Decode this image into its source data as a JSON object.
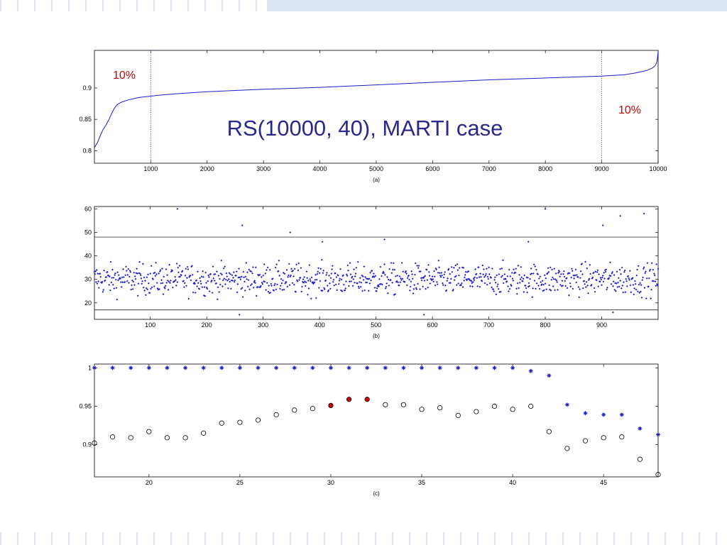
{
  "slide": {
    "title": "RS(10000, 40), MARTI case"
  },
  "colors": {
    "blue": "#1c1ccb",
    "red": "#cc0000",
    "axis": "#000000",
    "title": "#28288e",
    "band": "#dde4f4"
  },
  "chart_data": [
    {
      "type": "line",
      "caption": "(a)",
      "x_range": [
        1,
        10000
      ],
      "ylim": [
        0.78,
        0.96
      ],
      "xticks": [
        1000,
        2000,
        3000,
        4000,
        5000,
        6000,
        7000,
        8000,
        9000,
        10000
      ],
      "yticks": [
        0.8,
        0.85,
        0.9
      ],
      "yticklabels": [
        "0.8",
        "0.85",
        "0.9"
      ],
      "vlines": [
        1000,
        9000
      ],
      "annotations": [
        "10%",
        "10%"
      ],
      "series": [
        {
          "x": [
            1,
            50,
            100,
            150,
            200,
            250,
            300,
            350,
            400,
            450,
            500,
            600,
            700,
            800,
            900,
            1000,
            1200,
            1500,
            2000,
            2500,
            3000,
            4000,
            5000,
            6000,
            7000,
            8000,
            9000,
            9200,
            9400,
            9600,
            9700,
            9800,
            9900,
            9950,
            9980,
            10000
          ],
          "y": [
            0.805,
            0.812,
            0.823,
            0.833,
            0.84,
            0.848,
            0.858,
            0.867,
            0.873,
            0.876,
            0.878,
            0.881,
            0.883,
            0.885,
            0.886,
            0.887,
            0.889,
            0.891,
            0.894,
            0.896,
            0.898,
            0.901,
            0.905,
            0.909,
            0.913,
            0.916,
            0.919,
            0.92,
            0.921,
            0.924,
            0.926,
            0.928,
            0.932,
            0.936,
            0.942,
            0.958
          ]
        }
      ]
    },
    {
      "type": "scatter",
      "caption": "(b)",
      "xlim": [
        1,
        1000
      ],
      "ylim": [
        13,
        61
      ],
      "xticks": [
        100,
        200,
        300,
        400,
        500,
        600,
        700,
        800,
        900
      ],
      "yticks": [
        20,
        30,
        40,
        50,
        60
      ],
      "hlines": [
        17,
        48
      ],
      "n_points": 1000,
      "mean": 30,
      "spread": [
        19,
        42
      ],
      "outliers": [
        {
          "x": 148,
          "y": 60
        },
        {
          "x": 263,
          "y": 53
        },
        {
          "x": 348,
          "y": 50
        },
        {
          "x": 800,
          "y": 60
        },
        {
          "x": 902,
          "y": 53
        },
        {
          "x": 933,
          "y": 57
        },
        {
          "x": 975,
          "y": 58
        },
        {
          "x": 515,
          "y": 47
        },
        {
          "x": 405,
          "y": 46
        },
        {
          "x": 770,
          "y": 46
        },
        {
          "x": 258,
          "y": 15
        },
        {
          "x": 585,
          "y": 15
        },
        {
          "x": 920,
          "y": 16
        }
      ]
    },
    {
      "type": "scatter",
      "caption": "(c)",
      "xlim": [
        17,
        48
      ],
      "ylim": [
        0.858,
        1.005
      ],
      "xticks": [
        20,
        25,
        30,
        35,
        40,
        45
      ],
      "yticks": [
        0.9,
        0.95,
        1
      ],
      "yticklabels": [
        "0.9",
        "0.95",
        "1"
      ],
      "x": [
        17,
        18,
        19,
        20,
        21,
        22,
        23,
        24,
        25,
        26,
        27,
        28,
        29,
        30,
        31,
        32,
        33,
        34,
        35,
        36,
        37,
        38,
        39,
        40,
        41,
        42,
        43,
        44,
        45,
        46,
        47,
        48
      ],
      "series": [
        {
          "marker": "star",
          "values": [
            1,
            1,
            1,
            1,
            1,
            1,
            1,
            1,
            1,
            1,
            1,
            1,
            1,
            1,
            1,
            1,
            1,
            1,
            1,
            1,
            1,
            1,
            1,
            1,
            0.996,
            0.99,
            0.952,
            0.941,
            0.939,
            0.939,
            0.921,
            0.913
          ]
        },
        {
          "marker": "circle",
          "values": [
            0.902,
            0.91,
            0.909,
            0.917,
            0.909,
            0.909,
            0.915,
            0.928,
            0.929,
            0.932,
            0.939,
            0.945,
            0.947,
            0.951,
            0.959,
            0.959,
            0.952,
            0.952,
            0.946,
            0.948,
            0.938,
            0.943,
            0.95,
            0.946,
            0.95,
            0.917,
            0.895,
            0.905,
            0.909,
            0.91,
            0.881,
            0.861
          ]
        }
      ],
      "highlighted_x": [
        30,
        31,
        32
      ]
    }
  ]
}
